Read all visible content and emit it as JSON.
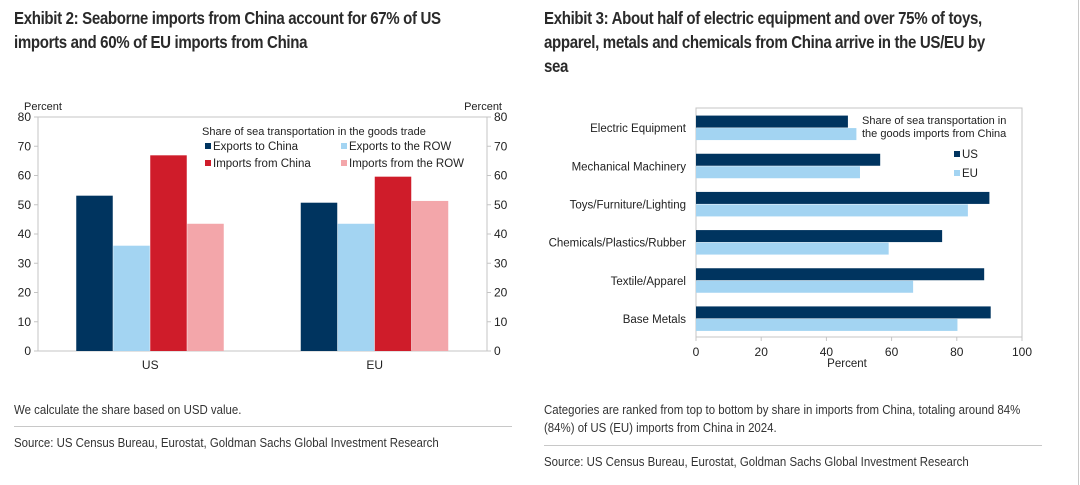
{
  "exhibit2": {
    "title_line1": "Exhibit 2: Seaborne imports from China account for 67% of US",
    "title_line2": "imports and 60% of EU imports from China",
    "note": "We calculate the share based on USD value.",
    "source": "Source: US Census Bureau, Eurostat, Goldman Sachs Global Investment Research"
  },
  "exhibit3": {
    "title_line1": "Exhibit 3: About half of electric equipment and over 75% of toys,",
    "title_line2": "apparel, metals and chemicals from China arrive in the US/EU by",
    "title_line3": "sea",
    "note_line1": "Categories are ranked from top to bottom by share in imports from China, totaling around 84%",
    "note_line2": "(84%) of US (EU) imports from China in 2024.",
    "source": "Source: US Census Bureau, Eurostat, Goldman Sachs Global Investment Research"
  },
  "chart_data": [
    {
      "type": "bar",
      "orientation": "vertical",
      "title": "Exhibit 2: Seaborne imports from China account for 67% of US imports and 60% of EU imports from China",
      "categories": [
        "US",
        "EU"
      ],
      "series": [
        {
          "name": "Exports to China",
          "color": "#00345f",
          "values": [
            53.1,
            50.7
          ]
        },
        {
          "name": "Exports to the ROW",
          "color": "#a3d4f2",
          "values": [
            36.0,
            43.5
          ]
        },
        {
          "name": "Imports from China",
          "color": "#cf1c2a",
          "values": [
            66.9,
            59.6
          ]
        },
        {
          "name": "Imports from the ROW",
          "color": "#f3a6aa",
          "values": [
            43.5,
            51.3
          ]
        }
      ],
      "legend_title": "Share of sea transportation in the goods trade",
      "legend_position": "top-right",
      "ylabel_left": "Percent",
      "ylabel_right": "Percent",
      "ylim": [
        0,
        80
      ],
      "yticks": [
        0,
        10,
        20,
        30,
        40,
        50,
        60,
        70,
        80
      ],
      "grid": false
    },
    {
      "type": "bar",
      "orientation": "horizontal",
      "title": "Exhibit 3: About half of electric equipment and over 75% of toys, apparel, metals and chemicals from China arrive in the US/EU by sea",
      "categories": [
        "Electric Equipment",
        "Mechanical Machinery",
        "Toys/Furniture/Lighting",
        "Chemicals/Plastics/Rubber",
        "Textile/Apparel",
        "Base Metals"
      ],
      "series": [
        {
          "name": "US",
          "color": "#00345f",
          "values": [
            46.6,
            56.5,
            90.0,
            75.5,
            88.4,
            90.4
          ]
        },
        {
          "name": "EU",
          "color": "#a3d4f2",
          "values": [
            49.2,
            50.3,
            83.4,
            59.1,
            66.6,
            80.2
          ]
        }
      ],
      "legend_title": "Share of sea transportation in the goods imports from China",
      "legend_position": "top-right",
      "xlabel": "Percent",
      "xlim": [
        0,
        100
      ],
      "xticks": [
        0,
        20,
        40,
        60,
        80,
        100
      ],
      "grid": false
    }
  ]
}
